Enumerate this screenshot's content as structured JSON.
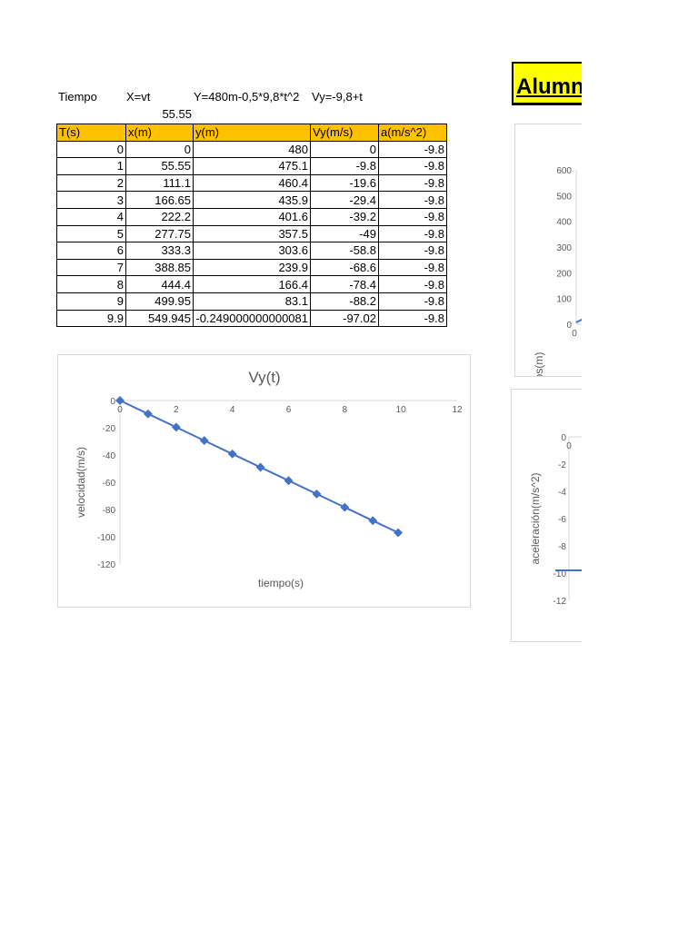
{
  "header": {
    "col1": "Tiempo",
    "col2": "X=vt",
    "col3": "Y=480m-0,5*9,8*t^2",
    "col4": "Vy=-9,8+t",
    "velocity_value": "55.55"
  },
  "table": {
    "columns": [
      "T(s)",
      "x(m)",
      "y(m)",
      "Vy(m/s)",
      "a(m/s^2)"
    ],
    "rows": [
      [
        "0",
        "0",
        "480",
        "0",
        "-9.8"
      ],
      [
        "1",
        "55.55",
        "475.1",
        "-9.8",
        "-9.8"
      ],
      [
        "2",
        "111.1",
        "460.4",
        "-19.6",
        "-9.8"
      ],
      [
        "3",
        "166.65",
        "435.9",
        "-29.4",
        "-9.8"
      ],
      [
        "4",
        "222.2",
        "401.6",
        "-39.2",
        "-9.8"
      ],
      [
        "5",
        "277.75",
        "357.5",
        "-49",
        "-9.8"
      ],
      [
        "6",
        "333.3",
        "303.6",
        "-58.8",
        "-9.8"
      ],
      [
        "7",
        "388.85",
        "239.9",
        "-68.6",
        "-9.8"
      ],
      [
        "8",
        "444.4",
        "166.4",
        "-78.4",
        "-9.8"
      ],
      [
        "9",
        "499.95",
        "83.1",
        "-88.2",
        "-9.8"
      ],
      [
        "9.9",
        "549.945",
        "-0.249000000000081",
        "-97.02",
        "-9.8"
      ]
    ]
  },
  "title_box": {
    "text": "Alumn"
  },
  "chart_data": [
    {
      "type": "line",
      "title": "Vy(t)",
      "xlabel": "tiempo(s)",
      "ylabel": "velocidad(m/s)",
      "xlim": [
        0,
        12
      ],
      "ylim": [
        -120,
        0
      ],
      "xticks": [
        0,
        2,
        4,
        6,
        8,
        10,
        12
      ],
      "yticks": [
        0,
        -20,
        -40,
        -60,
        -80,
        -100,
        -120
      ],
      "x": [
        0,
        1,
        2,
        3,
        4,
        5,
        6,
        7,
        8,
        9,
        9.9
      ],
      "y": [
        0,
        -9.8,
        -19.6,
        -29.4,
        -39.2,
        -49,
        -58.8,
        -68.6,
        -78.4,
        -88.2,
        -97.02
      ],
      "color": "#4472c4",
      "markers": true,
      "grid": false
    },
    {
      "type": "line",
      "title": "",
      "xlabel": "",
      "ylabel": "metros(m)",
      "ylim": [
        0,
        600
      ],
      "yticks": [
        0,
        100,
        200,
        300,
        400,
        500,
        600
      ],
      "xticks": [
        0
      ],
      "color": "#4472c4",
      "grid": false,
      "cropped": true
    },
    {
      "type": "line",
      "title": "",
      "xlabel": "",
      "ylabel": "aceleración(m/s^2)",
      "ylim": [
        -12,
        0
      ],
      "yticks": [
        0,
        -2,
        -4,
        -6,
        -8,
        -10,
        -12
      ],
      "xticks": [
        0
      ],
      "y_constant": -9.8,
      "color": "#4472c4",
      "grid": false,
      "cropped": true
    }
  ]
}
